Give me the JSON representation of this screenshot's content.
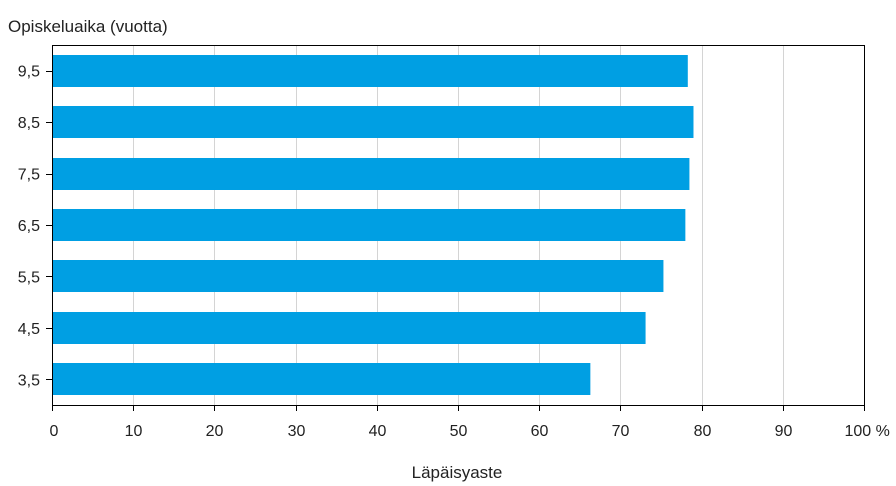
{
  "chart_data": {
    "type": "bar",
    "orientation": "horizontal",
    "categories": [
      "9,5",
      "8,5",
      "7,5",
      "6,5",
      "5,5",
      "4,5",
      "3,5"
    ],
    "values": [
      78.3,
      79.0,
      78.5,
      78.0,
      75.3,
      73.1,
      66.3
    ],
    "x_ticks": [
      "0",
      "10",
      "20",
      "30",
      "40",
      "50",
      "60",
      "70",
      "80",
      "90",
      "100 %"
    ],
    "xlim": [
      0,
      100
    ],
    "xlabel": "Läpäisyaste",
    "ylabel": "Opiskeluaika (vuotta)",
    "grid": "vertical",
    "bar_color": "#009fe3"
  }
}
